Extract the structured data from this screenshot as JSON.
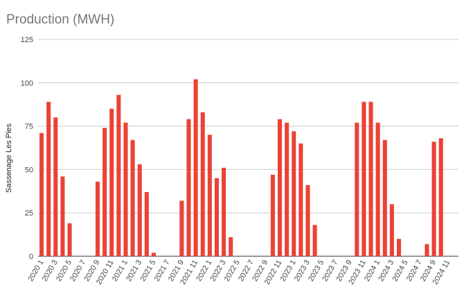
{
  "chart_data": {
    "type": "bar",
    "title": "Production (MWH)",
    "xlabel": "",
    "ylabel": "Sassenage Les Pies",
    "ylim": [
      0,
      125
    ],
    "yticks": [
      "0",
      "25",
      "50",
      "75",
      "100",
      "125"
    ],
    "grid": true,
    "legend": "none",
    "bar_color": "#ea4335",
    "categories": [
      "2020 1",
      "2020 2",
      "2020 3",
      "2020 4",
      "2020 5",
      "2020 6",
      "2020 7",
      "2020 8",
      "2020 9",
      "2020 10",
      "2020 11",
      "2020 12",
      "2021 1",
      "2021 2",
      "2021 3",
      "2021 4",
      "2021 5",
      "2021 6",
      "2021 7",
      "2021 8",
      "2021 9",
      "2021 10",
      "2021 11",
      "2021 12",
      "2022 1",
      "2022 2",
      "2022 3",
      "2022 4",
      "2022 5",
      "2022 6",
      "2022 7",
      "2022 8",
      "2022 9",
      "2022 10",
      "2022 11",
      "2022 12",
      "2023 1",
      "2023 2",
      "2023 3",
      "2023 4",
      "2023 5",
      "2023 6",
      "2023 7",
      "2023 8",
      "2023 9",
      "2023 10",
      "2023 11",
      "2023 12",
      "2024 1",
      "2024 2",
      "2024 3",
      "2024 4",
      "2024 5",
      "2024 6",
      "2024 7",
      "2024 8",
      "2024 9",
      "2024 10",
      "2024 11",
      "2024 12"
    ],
    "xtick_labels": [
      "2020 1",
      "2020 3",
      "2020 5",
      "2020 7",
      "2020 9",
      "2020 11",
      "2021 1",
      "2021 3",
      "2021 5",
      "2021 7",
      "2021 9",
      "2021 11",
      "2022 1",
      "2022 3",
      "2022 5",
      "2022 7",
      "2022 9",
      "2022 11",
      "2023 1",
      "2023 3",
      "2023 5",
      "2023 7",
      "2023 9",
      "2023 11",
      "2024 1",
      "2024 3",
      "2024 5",
      "2024 7",
      "2024 9",
      "2024 11"
    ],
    "values": [
      71,
      89,
      80,
      46,
      19,
      0,
      0,
      0,
      43,
      74,
      85,
      93,
      77,
      67,
      53,
      37,
      2,
      0,
      0,
      0,
      32,
      79,
      102,
      83,
      70,
      45,
      51,
      11,
      0,
      0,
      0,
      0,
      0,
      47,
      79,
      77,
      72,
      65,
      41,
      18,
      0,
      0,
      0,
      0,
      0,
      77,
      89,
      89,
      77,
      67,
      30,
      10,
      0,
      0,
      0,
      7,
      66,
      68,
      0,
      0
    ]
  }
}
